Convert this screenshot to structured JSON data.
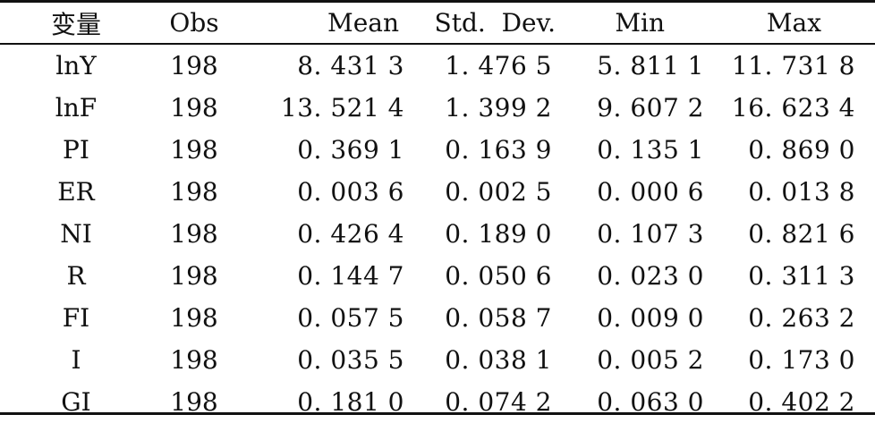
{
  "table": {
    "headers": {
      "variable": "变量",
      "obs": "Obs",
      "mean": "Mean",
      "std_dev": "Std.  Dev.",
      "min": "Min",
      "max": "Max"
    },
    "rows": [
      {
        "variable": "lnY",
        "obs": "198",
        "mean": "8. 431 3",
        "std_dev": "1. 476 5",
        "min": "5. 811 1",
        "max": "11. 731 8"
      },
      {
        "variable": "lnF",
        "obs": "198",
        "mean": "13. 521 4",
        "std_dev": "1. 399 2",
        "min": "9. 607 2",
        "max": "16. 623 4"
      },
      {
        "variable": "PI",
        "obs": "198",
        "mean": "0. 369 1",
        "std_dev": "0. 163 9",
        "min": "0. 135 1",
        "max": "0. 869 0"
      },
      {
        "variable": "ER",
        "obs": "198",
        "mean": "0. 003 6",
        "std_dev": "0. 002 5",
        "min": "0. 000 6",
        "max": "0. 013 8"
      },
      {
        "variable": "NI",
        "obs": "198",
        "mean": "0. 426 4",
        "std_dev": "0. 189 0",
        "min": "0. 107 3",
        "max": "0. 821 6"
      },
      {
        "variable": "R",
        "obs": "198",
        "mean": "0. 144 7",
        "std_dev": "0. 050 6",
        "min": "0. 023 0",
        "max": "0. 311 3"
      },
      {
        "variable": "FI",
        "obs": "198",
        "mean": "0. 057 5",
        "std_dev": "0. 058 7",
        "min": "0. 009 0",
        "max": "0. 263 2"
      },
      {
        "variable": "I",
        "obs": "198",
        "mean": "0. 035 5",
        "std_dev": "0. 038 1",
        "min": "0. 005 2",
        "max": "0. 173 0"
      },
      {
        "variable": "GI",
        "obs": "198",
        "mean": "0. 181 0",
        "std_dev": "0. 074 2",
        "min": "0. 063 0",
        "max": "0. 402 2"
      }
    ]
  }
}
